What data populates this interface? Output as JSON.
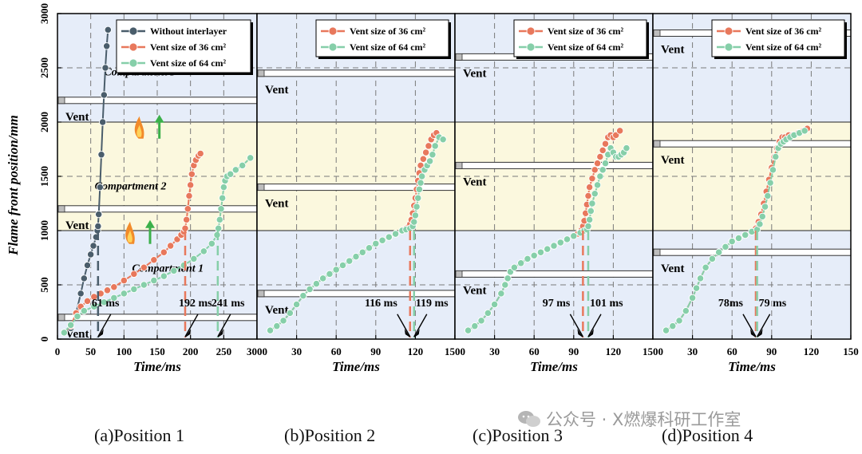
{
  "y_axis_label": "Flame front position/mm",
  "x_axis_label": "Time/ms",
  "captions": [
    "(a)Position 1",
    "(b)Position 2",
    "(c)Position 3",
    "(d)Position 4"
  ],
  "watermark": "公众号 · X燃爆科研工作室",
  "vent_label": "Vent",
  "colors": {
    "without": "#4a5d6b",
    "vent36": "#e8785c",
    "vent64": "#86cfa9",
    "band_blue": "#e6edf9",
    "band_yellow": "#fbf8de"
  },
  "chart_data": [
    {
      "type": "line",
      "panel": "a",
      "xlim": [
        0,
        300
      ],
      "ylim": [
        0,
        3000
      ],
      "xticks": [
        "0",
        "50",
        "100",
        "150",
        "200",
        "250",
        "300"
      ],
      "yticks": [
        "0",
        "500",
        "1000",
        "1500",
        "2000",
        "2500",
        "3000"
      ],
      "legend": "top-right",
      "compartment_labels": [
        "Compartment 3",
        "Compartment 2",
        "Compartment 1"
      ],
      "vent_positions": [
        2200,
        1200,
        200
      ],
      "annotations": [
        "61 ms",
        "192 ms",
        "241 ms"
      ],
      "marker_times": [
        61,
        192,
        241
      ],
      "series": [
        {
          "name": "Without interlayer",
          "color_key": "without",
          "x": [
            10,
            20,
            28,
            35,
            40,
            45,
            50,
            54,
            58,
            60,
            61,
            62,
            64,
            66,
            68,
            70,
            72,
            74,
            76
          ],
          "y": [
            60,
            100,
            240,
            420,
            560,
            680,
            780,
            860,
            940,
            1000,
            1040,
            1150,
            1400,
            1700,
            2000,
            2250,
            2500,
            2700,
            2850
          ]
        },
        {
          "name": "Vent size of 36 cm²",
          "color_key": "vent36",
          "x": [
            10,
            20,
            28,
            35,
            45,
            55,
            65,
            75,
            85,
            100,
            115,
            130,
            145,
            160,
            170,
            180,
            186,
            190,
            192,
            194,
            196,
            198,
            200,
            202,
            205,
            208,
            212,
            215
          ],
          "y": [
            60,
            120,
            240,
            300,
            350,
            390,
            420,
            450,
            480,
            540,
            600,
            660,
            730,
            800,
            860,
            920,
            960,
            990,
            1020,
            1100,
            1200,
            1320,
            1420,
            1520,
            1600,
            1650,
            1690,
            1710
          ]
        },
        {
          "name": "Vent size of 64 cm²",
          "color_key": "vent64",
          "x": [
            10,
            20,
            30,
            40,
            55,
            70,
            85,
            100,
            115,
            130,
            145,
            160,
            175,
            190,
            205,
            220,
            232,
            240,
            242,
            244,
            246,
            248,
            250,
            252,
            255,
            260,
            268,
            278,
            290
          ],
          "y": [
            60,
            130,
            210,
            260,
            300,
            340,
            380,
            420,
            460,
            500,
            540,
            580,
            630,
            680,
            740,
            810,
            880,
            960,
            1020,
            1100,
            1200,
            1300,
            1400,
            1460,
            1500,
            1520,
            1560,
            1600,
            1670
          ]
        }
      ]
    },
    {
      "type": "line",
      "panel": "b",
      "xlim": [
        0,
        150
      ],
      "ylim": [
        0,
        3000
      ],
      "xticks": [
        "0",
        "30",
        "60",
        "90",
        "120",
        "150"
      ],
      "legend": "top-right",
      "vent_positions": [
        2450,
        1400,
        420
      ],
      "annotations": [
        "116 ms",
        "119 ms"
      ],
      "marker_times": [
        116,
        119
      ],
      "series": [
        {
          "name": "Vent size of 36 cm²",
          "color_key": "vent36",
          "x": [
            10,
            15,
            20,
            25,
            30,
            35,
            40,
            45,
            50,
            55,
            60,
            65,
            70,
            75,
            80,
            85,
            90,
            95,
            100,
            105,
            110,
            113,
            115,
            116,
            117,
            118,
            119,
            120,
            121,
            122,
            123,
            124,
            126,
            128,
            130,
            132,
            134,
            136
          ],
          "y": [
            80,
            120,
            170,
            240,
            320,
            400,
            460,
            510,
            560,
            600,
            640,
            680,
            720,
            760,
            800,
            840,
            880,
            910,
            940,
            970,
            1000,
            1020,
            1040,
            1060,
            1100,
            1160,
            1230,
            1300,
            1380,
            1460,
            1530,
            1600,
            1660,
            1720,
            1780,
            1840,
            1880,
            1900
          ]
        },
        {
          "name": "Vent size of 64 cm²",
          "color_key": "vent64",
          "x": [
            10,
            15,
            20,
            25,
            30,
            35,
            40,
            45,
            50,
            55,
            60,
            65,
            70,
            75,
            80,
            85,
            90,
            95,
            100,
            105,
            110,
            113,
            116,
            118,
            119,
            120,
            121,
            122,
            123,
            124,
            125,
            127,
            129,
            131,
            133,
            135,
            138,
            141
          ],
          "y": [
            80,
            120,
            170,
            240,
            320,
            400,
            460,
            510,
            560,
            600,
            640,
            680,
            720,
            760,
            800,
            840,
            880,
            910,
            940,
            970,
            1000,
            1010,
            1020,
            1040,
            1080,
            1140,
            1220,
            1300,
            1380,
            1440,
            1500,
            1560,
            1600,
            1640,
            1700,
            1780,
            1860,
            1840
          ]
        }
      ]
    },
    {
      "type": "line",
      "panel": "c",
      "xlim": [
        0,
        150
      ],
      "ylim": [
        0,
        3000
      ],
      "xticks": [
        "0",
        "30",
        "60",
        "90",
        "120",
        "150"
      ],
      "legend": "top-right",
      "vent_positions": [
        2600,
        1600,
        600
      ],
      "annotations": [
        "97 ms",
        "101 ms"
      ],
      "marker_times": [
        97,
        101
      ],
      "series": [
        {
          "name": "Vent size of 36 cm²",
          "color_key": "vent36",
          "x": [
            10,
            15,
            20,
            25,
            30,
            35,
            38,
            40,
            42,
            45,
            50,
            55,
            60,
            65,
            70,
            75,
            80,
            85,
            90,
            93,
            95,
            96,
            97,
            98,
            99,
            100,
            101,
            102,
            104,
            106,
            108,
            110,
            112,
            114,
            116,
            118,
            120,
            122,
            125
          ],
          "y": [
            80,
            120,
            170,
            240,
            320,
            420,
            500,
            560,
            620,
            660,
            700,
            740,
            770,
            800,
            830,
            860,
            890,
            920,
            950,
            970,
            990,
            1010,
            1040,
            1090,
            1160,
            1240,
            1320,
            1400,
            1480,
            1560,
            1620,
            1680,
            1740,
            1800,
            1860,
            1880,
            1860,
            1880,
            1920
          ]
        },
        {
          "name": "Vent size of 64 cm²",
          "color_key": "vent64",
          "x": [
            10,
            15,
            20,
            25,
            30,
            35,
            38,
            40,
            42,
            45,
            50,
            55,
            60,
            65,
            70,
            75,
            80,
            85,
            90,
            95,
            98,
            100,
            101,
            102,
            103,
            104,
            106,
            108,
            110,
            112,
            114,
            116,
            118,
            120,
            122,
            124,
            126,
            128,
            130
          ],
          "y": [
            80,
            120,
            170,
            240,
            320,
            420,
            500,
            560,
            620,
            660,
            700,
            740,
            770,
            800,
            830,
            860,
            890,
            920,
            950,
            980,
            1000,
            1010,
            1040,
            1100,
            1180,
            1250,
            1340,
            1420,
            1500,
            1560,
            1620,
            1700,
            1760,
            1720,
            1680,
            1680,
            1700,
            1720,
            1760
          ]
        }
      ]
    },
    {
      "type": "line",
      "panel": "d",
      "xlim": [
        0,
        150
      ],
      "ylim": [
        0,
        3000
      ],
      "xticks": [
        "0",
        "30",
        "60",
        "90",
        "120",
        "150"
      ],
      "legend": "top-right",
      "vent_positions": [
        2820,
        1800,
        800
      ],
      "annotations": [
        "78ms",
        "79 ms"
      ],
      "marker_times": [
        78,
        79
      ],
      "series": [
        {
          "name": "Vent size of 36 cm²",
          "color_key": "vent36",
          "x": [
            10,
            15,
            20,
            25,
            30,
            33,
            36,
            40,
            45,
            50,
            55,
            60,
            65,
            70,
            75,
            78,
            80,
            82,
            84,
            86,
            88,
            90,
            92,
            94,
            96,
            98,
            100,
            103,
            106,
            110,
            114,
            117
          ],
          "y": [
            80,
            120,
            170,
            260,
            380,
            470,
            560,
            660,
            740,
            800,
            850,
            900,
            930,
            960,
            990,
            1020,
            1080,
            1150,
            1250,
            1360,
            1470,
            1580,
            1680,
            1760,
            1820,
            1860,
            1860,
            1880,
            1880,
            1900,
            1920,
            1940
          ]
        },
        {
          "name": "Vent size of 64 cm²",
          "color_key": "vent64",
          "x": [
            10,
            15,
            20,
            25,
            30,
            33,
            36,
            40,
            45,
            50,
            55,
            60,
            65,
            70,
            75,
            79,
            81,
            83,
            85,
            87,
            89,
            91,
            93,
            95,
            97,
            99,
            101,
            104,
            107,
            111,
            115
          ],
          "y": [
            80,
            120,
            170,
            260,
            380,
            470,
            560,
            660,
            740,
            800,
            850,
            900,
            930,
            960,
            990,
            1010,
            1060,
            1130,
            1220,
            1320,
            1440,
            1560,
            1680,
            1760,
            1800,
            1820,
            1840,
            1860,
            1880,
            1900,
            1920
          ]
        }
      ]
    }
  ]
}
